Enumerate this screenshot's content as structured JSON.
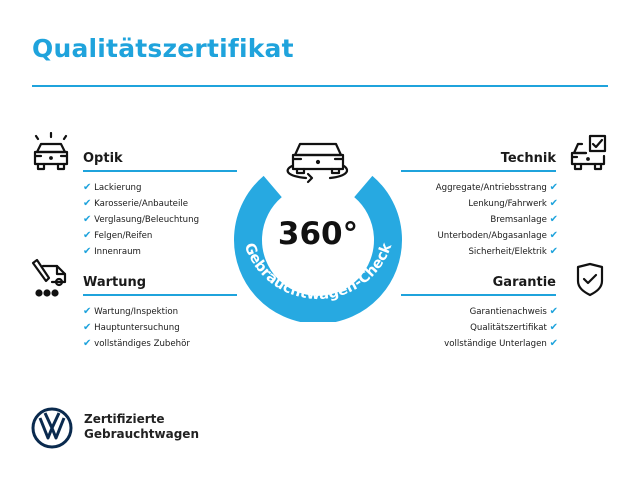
{
  "title": "Qualitätszertifikat",
  "center": {
    "degrees": "360°",
    "ring_text": "Gebrauchtwagen-Check",
    "ring_color": "#27a9e1"
  },
  "sections": {
    "optik": {
      "heading": "Optik",
      "icon": "car-lights-icon",
      "items": [
        "Lackierung",
        "Karosserie/Anbauteile",
        "Verglasung/Beleuchtung",
        "Felgen/Reifen",
        "Innenraum"
      ]
    },
    "wartung": {
      "heading": "Wartung",
      "icon": "service-van-icon",
      "items": [
        "Wartung/Inspektion",
        "Hauptuntersuchung",
        "vollständiges Zubehör"
      ]
    },
    "technik": {
      "heading": "Technik",
      "icon": "car-checkbox-icon",
      "items": [
        "Aggregate/Antriebsstrang",
        "Lenkung/Fahrwerk",
        "Bremsanlage",
        "Unterboden/Abgasanlage",
        "Sicherheit/Elektrik"
      ]
    },
    "garantie": {
      "heading": "Garantie",
      "icon": "shield-check-icon",
      "items": [
        "Garantienachweis",
        "Qualitätszertifikat",
        "vollständige Unterlagen"
      ]
    }
  },
  "check_glyph": "✔",
  "brand": {
    "line1": "Zertifizierte",
    "line2": "Gebrauchtwagen",
    "logo": "vw-logo"
  },
  "accent": "#1fa3dc"
}
